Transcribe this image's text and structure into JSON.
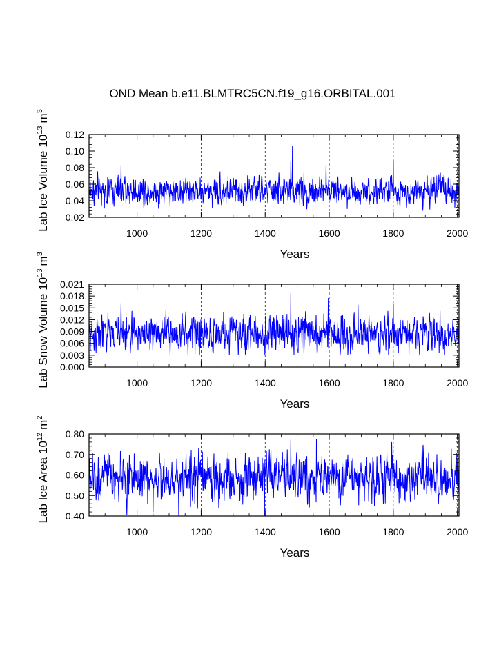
{
  "title": "OND Mean b.e11.BLMTRC5CN.f19_g16.ORBITAL.001",
  "series_color": "#0000ff",
  "chart_data": [
    {
      "type": "line",
      "ylabel": "Lab Ice Volume",
      "ylabel_unit_base": "10",
      "ylabel_unit_exp": "13",
      "ylabel_unit_m": "m",
      "ylabel_unit_mexp": "3",
      "xlabel": "Years",
      "xlim": [
        850,
        2005
      ],
      "ylim": [
        0.02,
        0.12
      ],
      "xticks": [
        1000,
        1200,
        1400,
        1600,
        1800,
        2000
      ],
      "xtick_labels": [
        "1000",
        "1200",
        "1400",
        "1600",
        "1800",
        "2000"
      ],
      "yticks": [
        0.02,
        0.04,
        0.06,
        0.08,
        0.1,
        0.12
      ],
      "ytick_labels": [
        "0.02",
        "0.04",
        "0.06",
        "0.08",
        "0.10",
        "0.12"
      ],
      "gridlines_x": [
        1000,
        1200,
        1400,
        1600,
        1800,
        2000
      ],
      "series": [
        {
          "name": "Lab Ice Volume",
          "start_year": 850,
          "end_year": 2005,
          "mean": 0.052,
          "std": 0.0085,
          "min": 0.028,
          "max": 0.106,
          "peaks": [
            [
              1485,
              0.106
            ],
            [
              1480,
              0.088
            ],
            [
              1800,
              0.089
            ],
            [
              950,
              0.083
            ],
            [
              1590,
              0.083
            ]
          ]
        }
      ]
    },
    {
      "type": "line",
      "ylabel": "Lab Snow Volume",
      "ylabel_unit_base": "10",
      "ylabel_unit_exp": "13",
      "ylabel_unit_m": "m",
      "ylabel_unit_mexp": "3",
      "xlabel": "Years",
      "xlim": [
        850,
        2005
      ],
      "ylim": [
        0.0,
        0.021
      ],
      "xticks": [
        1000,
        1200,
        1400,
        1600,
        1800,
        2000
      ],
      "xtick_labels": [
        "1000",
        "1200",
        "1400",
        "1600",
        "1800",
        "2000"
      ],
      "yticks": [
        0.0,
        0.003,
        0.006,
        0.009,
        0.012,
        0.015,
        0.018,
        0.021
      ],
      "ytick_labels": [
        "0.000",
        "0.003",
        "0.006",
        "0.009",
        "0.012",
        "0.015",
        "0.018",
        "0.021"
      ],
      "gridlines_x": [
        1000,
        1200,
        1400,
        1600,
        1800,
        2000
      ],
      "series": [
        {
          "name": "Lab Snow Volume",
          "start_year": 850,
          "end_year": 2005,
          "mean": 0.0085,
          "std": 0.0022,
          "min": 0.003,
          "max": 0.0187,
          "peaks": [
            [
              1480,
              0.0187
            ],
            [
              1597,
              0.0175
            ],
            [
              1800,
              0.0162
            ],
            [
              950,
              0.0162
            ],
            [
              1690,
              0.0158
            ]
          ]
        }
      ]
    },
    {
      "type": "line",
      "ylabel": "Lab Ice Area",
      "ylabel_unit_base": "10",
      "ylabel_unit_exp": "12",
      "ylabel_unit_m": "m",
      "ylabel_unit_mexp": "2",
      "xlabel": "Years",
      "xlim": [
        850,
        2005
      ],
      "ylim": [
        0.4,
        0.8
      ],
      "xticks": [
        1000,
        1200,
        1400,
        1600,
        1800,
        2000
      ],
      "xtick_labels": [
        "1000",
        "1200",
        "1400",
        "1600",
        "1800",
        "2000"
      ],
      "yticks": [
        0.4,
        0.5,
        0.6,
        0.7,
        0.8
      ],
      "ytick_labels": [
        "0.40",
        "0.50",
        "0.60",
        "0.70",
        "0.80"
      ],
      "gridlines_x": [
        1000,
        1200,
        1400,
        1600,
        1800,
        2000
      ],
      "series": [
        {
          "name": "Lab Ice Area",
          "start_year": 850,
          "end_year": 2005,
          "mean": 0.585,
          "std": 0.055,
          "min": 0.4,
          "max": 0.775,
          "peaks": [
            [
              1480,
              0.772
            ],
            [
              1560,
              0.775
            ],
            [
              1795,
              0.76
            ],
            [
              1398,
              0.4
            ],
            [
              1050,
              0.42
            ]
          ]
        }
      ]
    }
  ]
}
